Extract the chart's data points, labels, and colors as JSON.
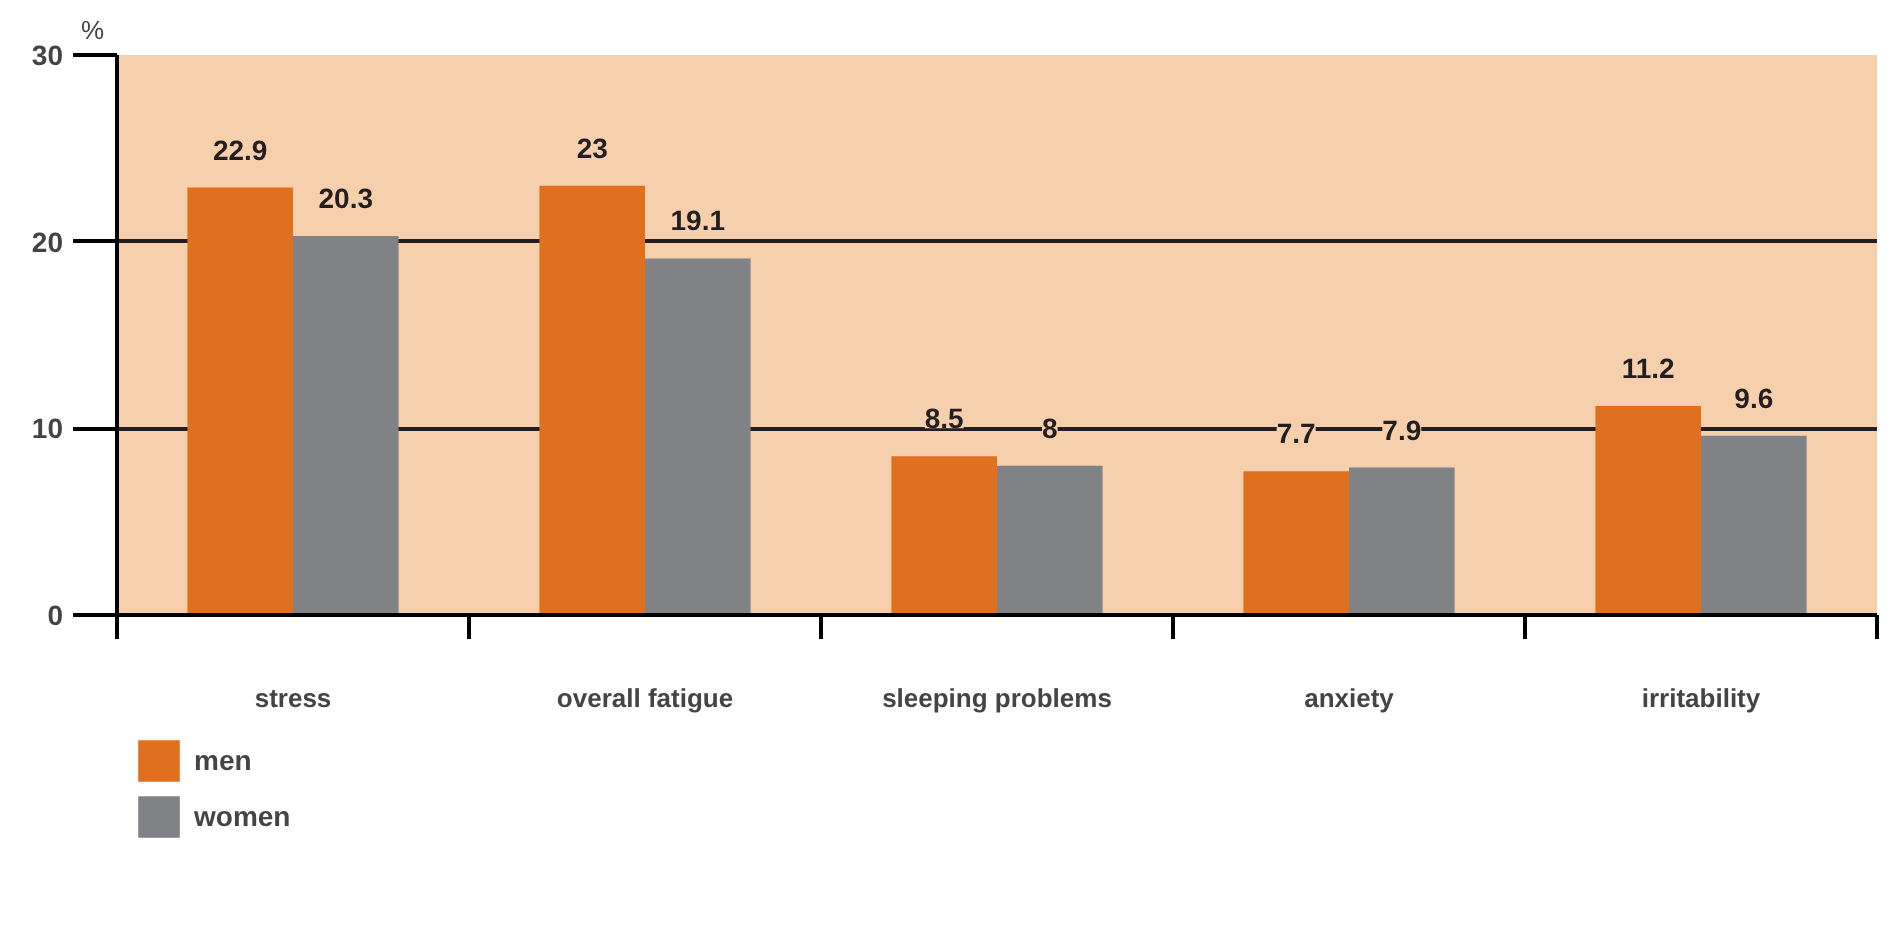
{
  "chart_data": {
    "type": "bar",
    "ylabel": "%",
    "categories": [
      "stress",
      "overall fatigue",
      "sleeping problems",
      "anxiety",
      "irritability"
    ],
    "series": [
      {
        "name": "men",
        "color": "#e0701e",
        "values": [
          22.9,
          23,
          8.5,
          7.7,
          11.2
        ]
      },
      {
        "name": "women",
        "color": "#818285",
        "values": [
          20.3,
          19.1,
          8,
          7.9,
          9.6
        ]
      }
    ],
    "ylim": [
      0,
      30
    ],
    "yticks": [
      0,
      10,
      20,
      30
    ],
    "grid": "y",
    "legend": "bottom left",
    "data_labels": true
  }
}
